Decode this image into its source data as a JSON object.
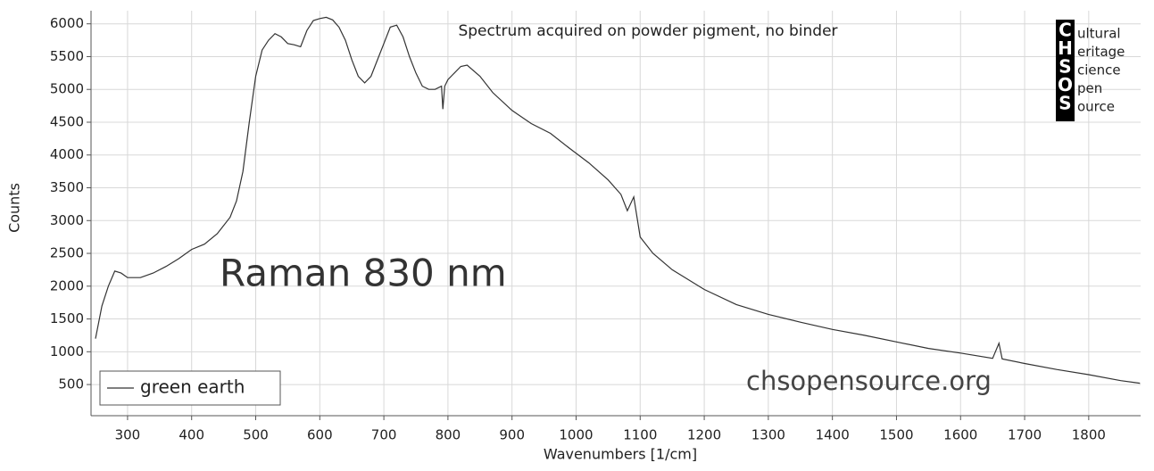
{
  "chart_data": {
    "type": "line",
    "annotations": [
      "Spectrum acquired on powder pigment, no binder",
      "Raman 830 nm",
      "chsopensource.org"
    ],
    "x_label": "Wavenumbers [1/cm]",
    "y_label": "Counts",
    "x": [
      250,
      260,
      270,
      280,
      290,
      300,
      320,
      340,
      360,
      380,
      400,
      420,
      440,
      460,
      470,
      480,
      490,
      500,
      510,
      520,
      530,
      540,
      550,
      560,
      570,
      580,
      590,
      600,
      610,
      620,
      630,
      640,
      650,
      660,
      670,
      680,
      690,
      700,
      710,
      720,
      730,
      740,
      750,
      760,
      770,
      780,
      790,
      792,
      795,
      800,
      820,
      830,
      850,
      870,
      900,
      930,
      960,
      990,
      1020,
      1050,
      1070,
      1080,
      1090,
      1100,
      1120,
      1150,
      1200,
      1250,
      1300,
      1350,
      1400,
      1450,
      1500,
      1550,
      1600,
      1650,
      1660,
      1665,
      1700,
      1750,
      1800,
      1850,
      1880
    ],
    "series": [
      {
        "name": "green earth",
        "color": "#333333",
        "values": [
          1200,
          1700,
          2000,
          2230,
          2200,
          2130,
          2130,
          2200,
          2300,
          2420,
          2560,
          2640,
          2800,
          3050,
          3300,
          3750,
          4500,
          5200,
          5600,
          5750,
          5850,
          5800,
          5700,
          5680,
          5650,
          5900,
          6050,
          6080,
          6100,
          6060,
          5950,
          5750,
          5450,
          5200,
          5100,
          5200,
          5450,
          5700,
          5950,
          5980,
          5800,
          5500,
          5250,
          5050,
          5000,
          5000,
          5050,
          4700,
          5050,
          5150,
          5350,
          5370,
          5200,
          4950,
          4680,
          4480,
          4330,
          4100,
          3880,
          3620,
          3400,
          3150,
          3360,
          2750,
          2500,
          2250,
          1950,
          1720,
          1570,
          1450,
          1340,
          1250,
          1150,
          1050,
          980,
          900,
          1130,
          890,
          820,
          730,
          650,
          560,
          520
        ]
      }
    ],
    "xlim": [
      243,
      1881
    ],
    "ylim": [
      25,
      6200
    ],
    "xticks": [
      300,
      400,
      500,
      600,
      700,
      800,
      900,
      1000,
      1100,
      1200,
      1300,
      1400,
      1500,
      1600,
      1700,
      1800
    ],
    "yticks": [
      500,
      1000,
      1500,
      2000,
      2500,
      3000,
      3500,
      4000,
      4500,
      5000,
      5500,
      6000
    ],
    "grid": true,
    "legend": "lower left"
  },
  "logo": {
    "letters": [
      "C",
      "H",
      "S",
      "O",
      "S"
    ],
    "words": [
      "ultural",
      "eritage",
      "cience",
      "pen",
      "ource"
    ]
  }
}
